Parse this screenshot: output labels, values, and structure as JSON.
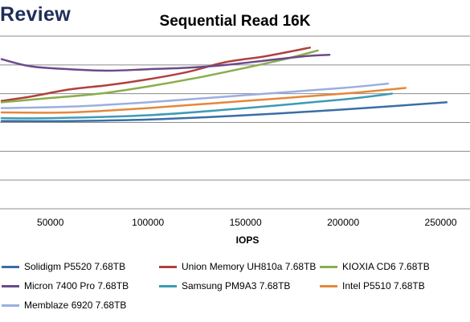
{
  "brand": "Review",
  "chart_data": {
    "type": "line",
    "title": "Sequential Read 16K",
    "xlabel": "IOPS",
    "ylabel": "",
    "xlim": [
      25000,
      265000
    ],
    "ylim": [
      0,
      12
    ],
    "x_ticks": [
      50000,
      100000,
      150000,
      200000,
      250000
    ],
    "x_tick_labels": [
      "50000",
      "100000",
      "150000",
      "200000",
      "250000"
    ],
    "gridlines": "horizontal",
    "legend_position": "bottom",
    "series": [
      {
        "name": "Solidigm P5520 7.68TB",
        "color": "#3a6ea5",
        "x": [
          25000,
          60000,
          100000,
          150000,
          200000,
          253000
        ],
        "y": [
          6.1,
          6.1,
          6.2,
          6.5,
          6.9,
          7.4
        ]
      },
      {
        "name": "Union Memory UH810a 7.68TB",
        "color": "#b0413e",
        "x": [
          25000,
          40000,
          60000,
          80000,
          100000,
          120000,
          140000,
          160000,
          183000
        ],
        "y": [
          7.5,
          7.8,
          8.3,
          8.6,
          9.0,
          9.5,
          10.2,
          10.6,
          11.2
        ]
      },
      {
        "name": "KIOXIA CD6 7.68TB",
        "color": "#8aad4b",
        "x": [
          25000,
          50000,
          75000,
          100000,
          125000,
          150000,
          170000,
          187000
        ],
        "y": [
          7.4,
          7.7,
          8.0,
          8.5,
          9.1,
          9.8,
          10.4,
          11.0
        ]
      },
      {
        "name": "Micron 7400 Pro 7.68TB",
        "color": "#6b4a8b",
        "x": [
          25000,
          40000,
          60000,
          80000,
          100000,
          120000,
          140000,
          160000,
          180000,
          193000
        ],
        "y": [
          10.4,
          9.9,
          9.7,
          9.6,
          9.7,
          9.8,
          10.0,
          10.3,
          10.6,
          10.7
        ]
      },
      {
        "name": "Samsung PM9A3 7.68TB",
        "color": "#3d9bb5",
        "x": [
          25000,
          50000,
          100000,
          150000,
          200000,
          225000
        ],
        "y": [
          6.3,
          6.3,
          6.5,
          7.0,
          7.6,
          8.0
        ]
      },
      {
        "name": "Intel P5510 7.68TB",
        "color": "#e5873a",
        "x": [
          25000,
          60000,
          100000,
          150000,
          200000,
          232000
        ],
        "y": [
          6.7,
          6.7,
          7.0,
          7.5,
          8.0,
          8.4
        ]
      },
      {
        "name": "Memblaze 6920 7.68TB",
        "color": "#9aaee0",
        "x": [
          25000,
          60000,
          100000,
          150000,
          200000,
          223000
        ],
        "y": [
          7.0,
          7.1,
          7.4,
          7.9,
          8.4,
          8.7
        ]
      }
    ]
  }
}
